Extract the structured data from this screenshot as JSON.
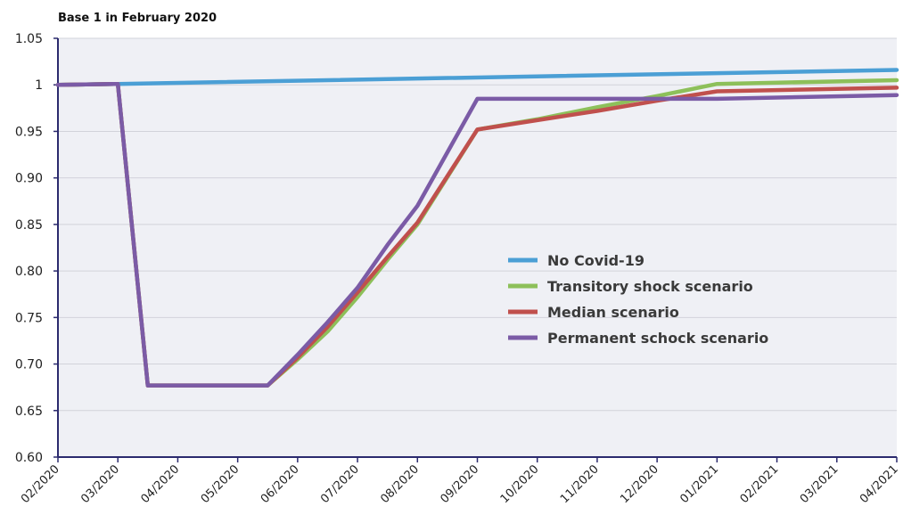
{
  "chart_data": {
    "type": "line",
    "subtitle": "Base 1 in February 2020",
    "categories": [
      "02/2020",
      "03/2020",
      "04/2020",
      "05/2020",
      "06/2020",
      "07/2020",
      "08/2020",
      "09/2020",
      "10/2020",
      "11/2020",
      "12/2020",
      "01/2021",
      "02/2021",
      "03/2021",
      "04/2021"
    ],
    "y_ticks": [
      "0.60",
      "0.65",
      "0.70",
      "0.75",
      "0.80",
      "0.85",
      "0.90",
      "0.95",
      "1",
      "1.05"
    ],
    "ylim": [
      0.6,
      1.05
    ],
    "grid": "horizontal",
    "legend_position": "center-right",
    "series": [
      {
        "name": "No Covid-19",
        "color": "#4b9fd5",
        "points": [
          [
            0,
            1.0
          ],
          [
            1,
            1.001
          ],
          [
            14,
            1.016
          ]
        ]
      },
      {
        "name": "Transitory shock scenario",
        "color": "#8dc05a",
        "points": [
          [
            0,
            1.0
          ],
          [
            1,
            1.001
          ],
          [
            1.5,
            0.677
          ],
          [
            3.5,
            0.677
          ],
          [
            4,
            0.705
          ],
          [
            4.5,
            0.735
          ],
          [
            5,
            0.772
          ],
          [
            5.5,
            0.812
          ],
          [
            6,
            0.85
          ],
          [
            7,
            0.952
          ],
          [
            8,
            0.963
          ],
          [
            9,
            0.976
          ],
          [
            10,
            0.988
          ],
          [
            11,
            1.001
          ],
          [
            14,
            1.005
          ]
        ]
      },
      {
        "name": "Median scenario",
        "color": "#c0504d",
        "points": [
          [
            0,
            1.0
          ],
          [
            1,
            1.001
          ],
          [
            1.5,
            0.677
          ],
          [
            3.5,
            0.677
          ],
          [
            4,
            0.707
          ],
          [
            4.5,
            0.74
          ],
          [
            5,
            0.777
          ],
          [
            5.5,
            0.815
          ],
          [
            6,
            0.852
          ],
          [
            7,
            0.952
          ],
          [
            8,
            0.962
          ],
          [
            9,
            0.972
          ],
          [
            10,
            0.983
          ],
          [
            11,
            0.993
          ],
          [
            14,
            0.997
          ]
        ]
      },
      {
        "name": "Permanent schock scenario",
        "color": "#7b5ba6",
        "points": [
          [
            0,
            1.0
          ],
          [
            1,
            1.001
          ],
          [
            1.5,
            0.677
          ],
          [
            3.5,
            0.677
          ],
          [
            4,
            0.71
          ],
          [
            4.5,
            0.745
          ],
          [
            5,
            0.782
          ],
          [
            5.5,
            0.828
          ],
          [
            6,
            0.87
          ],
          [
            7,
            0.985
          ],
          [
            10,
            0.985
          ],
          [
            11,
            0.985
          ],
          [
            14,
            0.989
          ]
        ]
      }
    ]
  }
}
